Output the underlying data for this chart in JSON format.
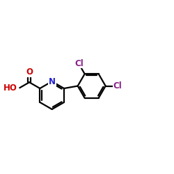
{
  "bg_color": "#ffffff",
  "bond_color": "#000000",
  "bond_width": 1.6,
  "N_color": "#2020cc",
  "O_color": "#cc0000",
  "Cl_color": "#882288",
  "HO_color": "#cc0000",
  "font_size_atom": 8.5,
  "xlim": [
    -2.2,
    3.8
  ],
  "ylim": [
    -1.6,
    1.8
  ]
}
